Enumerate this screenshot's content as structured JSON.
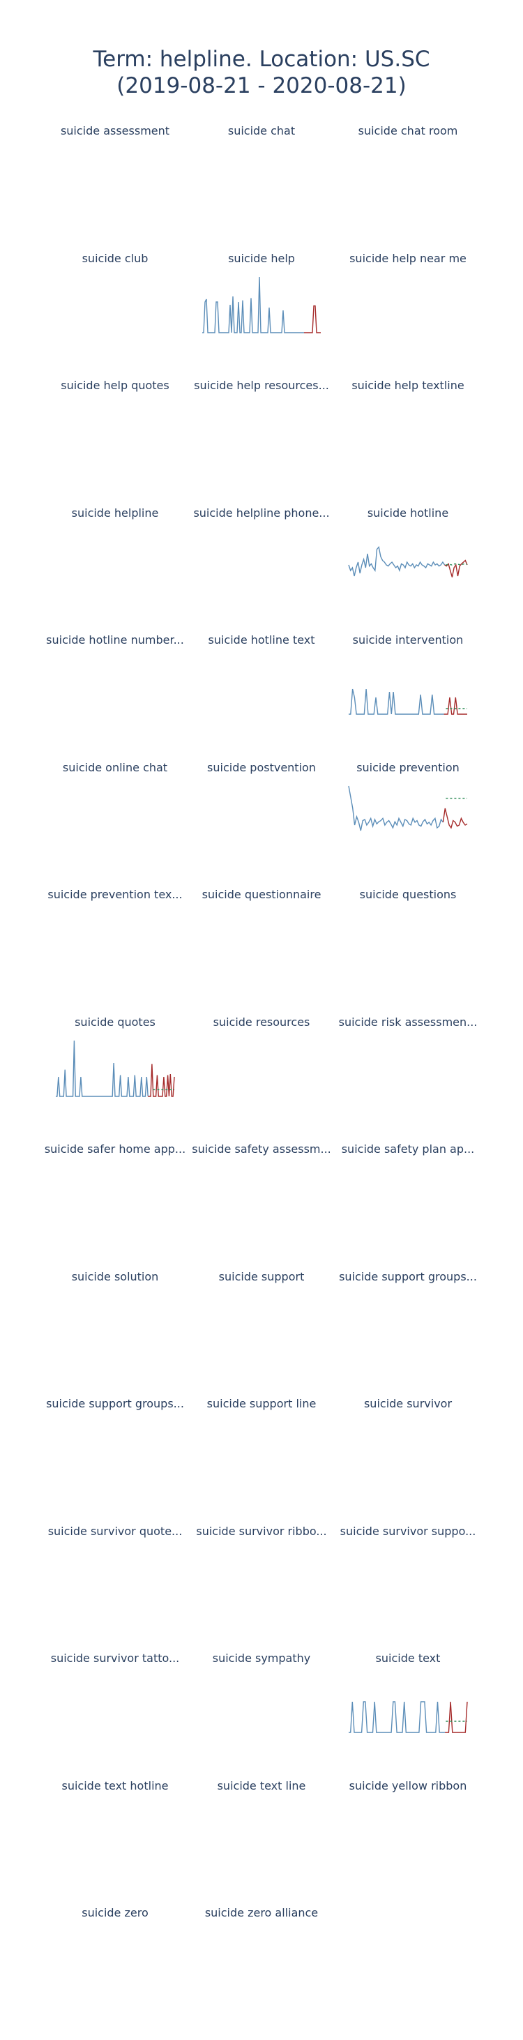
{
  "title": {
    "line1": "Term: helpline. Location: US.SC",
    "line2": "(2019-08-21 - 2020-08-21)"
  },
  "colors": {
    "history": "#5b8db8",
    "recent": "#a52a2a",
    "forecast": "#2e8b57",
    "title_text": "#2a3f5f"
  },
  "chart_data": {
    "type": "line",
    "layout": "small-multiples",
    "grid": false,
    "legend": "none",
    "panels": [
      {
        "title": "suicide assessment"
      },
      {
        "title": "suicide chat"
      },
      {
        "title": "suicide chat room"
      },
      {
        "title": "suicide club"
      },
      {
        "title": "suicide help",
        "history": [
          0,
          0,
          55,
          60,
          0,
          0,
          0,
          0,
          0,
          0,
          55,
          55,
          0,
          0,
          0,
          0,
          0,
          0,
          0,
          0,
          50,
          0,
          65,
          0,
          0,
          0,
          55,
          0,
          0,
          58,
          0,
          0,
          0,
          0,
          0,
          62,
          0,
          0,
          0,
          0,
          0,
          100,
          0,
          0,
          0,
          0,
          0,
          0,
          45,
          0,
          0,
          0,
          0,
          0,
          0,
          0,
          0,
          0,
          40,
          0,
          0,
          0,
          0,
          0,
          0,
          0,
          0,
          0,
          0,
          0,
          0,
          0,
          0,
          0
        ],
        "recent": [
          0,
          0,
          0,
          0,
          0,
          0,
          48,
          48,
          0,
          0,
          0,
          0
        ]
      },
      {
        "title": "suicide help near me"
      },
      {
        "title": "suicide help quotes"
      },
      {
        "title": "suicide help resources..."
      },
      {
        "title": "suicide help textline"
      },
      {
        "title": "suicide helpline"
      },
      {
        "title": "suicide helpline phone..."
      },
      {
        "title": "suicide hotline",
        "history": [
          40,
          30,
          35,
          20,
          35,
          45,
          25,
          40,
          50,
          35,
          60,
          38,
          42,
          35,
          30,
          68,
          72,
          55,
          48,
          45,
          40,
          38,
          42,
          45,
          40,
          35,
          38,
          30,
          42,
          40,
          35,
          45,
          40,
          38,
          42,
          35,
          40,
          38,
          45,
          40,
          38,
          35,
          42,
          40,
          38,
          45,
          40,
          42,
          38,
          40,
          45,
          40
        ],
        "recent": [
          38,
          42,
          30,
          18,
          35,
          40,
          20,
          38,
          42,
          45,
          48,
          40
        ],
        "forecast": [
          40,
          41,
          40,
          42,
          41,
          40,
          42,
          41
        ]
      },
      {
        "title": "suicide hotline number..."
      },
      {
        "title": "suicide hotline text"
      },
      {
        "title": "suicide intervention",
        "history": [
          0,
          0,
          45,
          30,
          0,
          0,
          0,
          0,
          0,
          45,
          0,
          0,
          0,
          0,
          30,
          0,
          0,
          0,
          0,
          0,
          0,
          40,
          0,
          40,
          0,
          0,
          0,
          0,
          0,
          0,
          0,
          0,
          0,
          0,
          0,
          0,
          0,
          35,
          0,
          0,
          0,
          0,
          0,
          35,
          0,
          0,
          0,
          0,
          0,
          0
        ],
        "recent": [
          0,
          0,
          30,
          0,
          0,
          30,
          0,
          0,
          0,
          0,
          0,
          0
        ],
        "forecast": [
          10,
          10,
          10,
          10,
          10,
          10,
          10,
          10
        ]
      },
      {
        "title": "suicide online chat"
      },
      {
        "title": "suicide postvention"
      },
      {
        "title": "suicide prevention",
        "history": [
          100,
          80,
          60,
          30,
          45,
          35,
          20,
          38,
          40,
          30,
          35,
          42,
          28,
          40,
          32,
          36,
          38,
          42,
          30,
          35,
          38,
          32,
          25,
          36,
          30,
          42,
          35,
          28,
          40,
          38,
          32,
          30,
          42,
          35,
          38,
          30,
          28,
          36,
          40,
          32,
          35,
          30,
          38,
          42,
          25,
          28,
          40,
          35
        ],
        "recent": [
          60,
          45,
          30,
          25,
          38,
          35,
          28,
          30,
          42,
          35,
          30,
          32
        ],
        "forecast": [
          78,
          78,
          78,
          78,
          78,
          78,
          78,
          78
        ]
      },
      {
        "title": "suicide prevention tex..."
      },
      {
        "title": "suicide questionnaire"
      },
      {
        "title": "suicide questions"
      },
      {
        "title": "suicide quotes",
        "history": [
          0,
          0,
          35,
          0,
          0,
          0,
          0,
          48,
          0,
          0,
          0,
          0,
          0,
          0,
          100,
          0,
          0,
          0,
          0,
          35,
          0,
          0,
          0,
          0,
          0,
          0,
          0,
          0,
          0,
          0,
          0,
          0,
          0,
          0,
          0,
          0,
          0,
          0,
          0,
          0,
          0,
          0,
          0,
          0,
          60,
          0,
          0,
          0,
          0,
          38,
          0,
          0,
          0,
          0,
          0,
          35,
          0,
          0,
          0,
          0,
          38,
          0,
          0,
          0,
          0,
          35,
          0,
          0,
          0,
          35,
          0
        ],
        "recent": [
          0,
          0,
          58,
          0,
          0,
          0,
          38,
          0,
          0,
          0,
          0,
          35,
          0,
          0,
          38,
          0,
          40,
          0,
          0,
          35
        ],
        "forecast": [
          12,
          12,
          12,
          12,
          12,
          12,
          12,
          12
        ]
      },
      {
        "title": "suicide resources"
      },
      {
        "title": "suicide risk assessmen..."
      },
      {
        "title": "suicide safer home app..."
      },
      {
        "title": "suicide safety assessm..."
      },
      {
        "title": "suicide safety plan ap..."
      },
      {
        "title": "suicide solution"
      },
      {
        "title": "suicide support"
      },
      {
        "title": "suicide support groups..."
      },
      {
        "title": "suicide support groups..."
      },
      {
        "title": "suicide support line"
      },
      {
        "title": "suicide survivor"
      },
      {
        "title": "suicide survivor quote..."
      },
      {
        "title": "suicide survivor ribbo..."
      },
      {
        "title": "suicide survivor suppo..."
      },
      {
        "title": "suicide survivor tatto..."
      },
      {
        "title": "suicide sympathy"
      },
      {
        "title": "suicide text",
        "history": [
          0,
          0,
          55,
          0,
          0,
          0,
          0,
          0,
          55,
          55,
          0,
          0,
          0,
          0,
          55,
          0,
          0,
          0,
          0,
          0,
          0,
          0,
          0,
          0,
          55,
          55,
          0,
          0,
          0,
          0,
          55,
          0,
          0,
          0,
          0,
          0,
          0,
          0,
          0,
          55,
          55,
          55,
          0,
          0,
          0,
          0,
          0,
          0,
          55,
          0,
          0,
          0,
          0
        ],
        "recent": [
          0,
          0,
          55,
          0,
          0,
          0,
          0,
          0,
          0,
          0,
          0,
          55
        ],
        "forecast": [
          20,
          20,
          20,
          20,
          20,
          20,
          20,
          20
        ]
      },
      {
        "title": "suicide text hotline"
      },
      {
        "title": "suicide text line"
      },
      {
        "title": "suicide yellow ribbon"
      },
      {
        "title": "suicide zero"
      },
      {
        "title": "suicide zero alliance"
      }
    ]
  }
}
